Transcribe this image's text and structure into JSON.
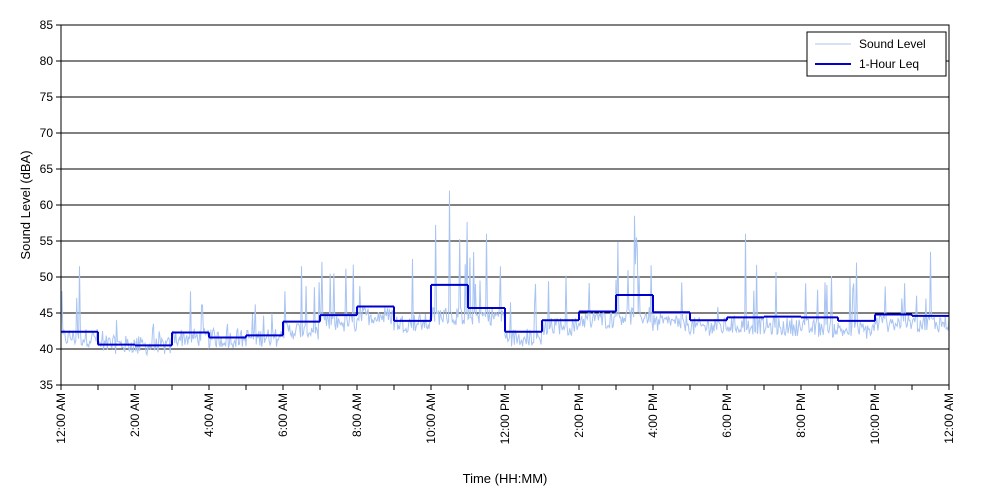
{
  "chart_data": {
    "type": "line",
    "xlabel": "Time (HH:MM)",
    "ylabel": "Sound Level (dBA)",
    "ylim": [
      35,
      85
    ],
    "y_ticks": [
      "35",
      "40",
      "45",
      "50",
      "55",
      "60",
      "65",
      "70",
      "75",
      "80",
      "85"
    ],
    "xlim": [
      0,
      24
    ],
    "x_ticks": [
      "12:00 AM",
      "2:00 AM",
      "4:00 AM",
      "6:00 AM",
      "8:00 AM",
      "10:00 AM",
      "12:00 PM",
      "2:00 PM",
      "4:00 PM",
      "6:00 PM",
      "8:00 PM",
      "10:00 PM",
      "12:00 AM"
    ],
    "x_tick_hours": [
      0,
      2,
      4,
      6,
      8,
      10,
      12,
      14,
      16,
      18,
      20,
      22,
      24
    ],
    "grid": "horizontal",
    "legend_position": "top-right",
    "series": [
      {
        "name": "Sound Level",
        "color": "#a9c4f2",
        "style": "thin-line",
        "hourly_baseline": [
          41.5,
          40.5,
          40.3,
          41.5,
          41.3,
          41.5,
          42.5,
          43.5,
          44.5,
          43.5,
          44.5,
          44.5,
          41.5,
          43.0,
          44.0,
          44.5,
          43.5,
          43.0,
          43.2,
          43.0,
          42.8,
          42.5,
          43.5,
          43.5
        ],
        "hourly_peak": [
          51.5,
          44.0,
          43.5,
          48.0,
          43.5,
          47.5,
          51.5,
          54.5,
          54.0,
          52.5,
          62.0,
          56.0,
          51.5,
          53.5,
          55.0,
          58.5,
          53.0,
          51.0,
          56.0,
          54.0,
          53.5,
          52.0,
          51.0,
          53.5
        ]
      },
      {
        "name": "1-Hour Leq",
        "color": "#0000cc",
        "style": "step",
        "hours": [
          0,
          1,
          2,
          3,
          4,
          5,
          6,
          7,
          8,
          9,
          10,
          11,
          12,
          13,
          14,
          15,
          16,
          17,
          18,
          19,
          20,
          21,
          22,
          23
        ],
        "values": [
          42.4,
          40.6,
          40.5,
          42.3,
          41.6,
          41.9,
          43.8,
          44.7,
          45.9,
          43.9,
          48.9,
          45.7,
          42.4,
          44.0,
          45.2,
          47.5,
          45.1,
          44.0,
          44.4,
          44.5,
          44.4,
          43.9,
          44.8,
          44.6
        ]
      }
    ]
  }
}
